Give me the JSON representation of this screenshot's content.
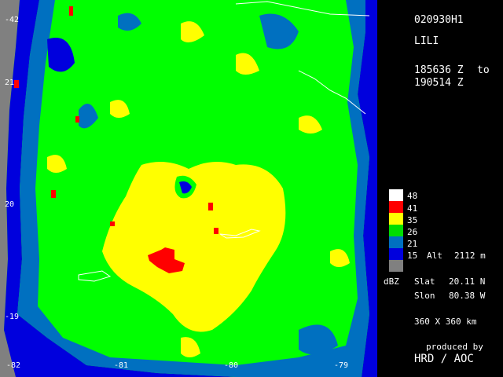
{
  "flight_id": "020930H1",
  "storm_name": "LILI",
  "time_start": "185636 Z",
  "time_sep": "to",
  "time_end": "190514 Z",
  "legend": [
    {
      "label": "48",
      "color": "#ffffff"
    },
    {
      "label": "41",
      "color": "#ff0000"
    },
    {
      "label": "35",
      "color": "#ffff00"
    },
    {
      "label": "26",
      "color": "#00dd00"
    },
    {
      "label": "21",
      "color": "#0070c0"
    },
    {
      "label": "15",
      "color": "#0000dd"
    },
    {
      "label": "",
      "color": "#808080"
    }
  ],
  "unit": "dBZ",
  "alt_label": "Alt",
  "alt_value": "2112 m",
  "slat_label": "Slat",
  "slat_value": "20.11 N",
  "slon_label": "Slon",
  "slon_value": "80.38 W",
  "domain": "360 X 360 km",
  "credit_line1": "produced by",
  "credit_line2": "HRD / AOC",
  "lon_labels": [
    "-82",
    "-81",
    "-80",
    "-79"
  ],
  "lat_labels": [
    "-42",
    "21",
    "20",
    "-19"
  ],
  "colors": {
    "green": "#00ff00",
    "yellow": "#ffff00",
    "blue": "#0070c0",
    "dark_blue": "#0000dd",
    "red": "#ff0000",
    "gray": "#808080"
  }
}
